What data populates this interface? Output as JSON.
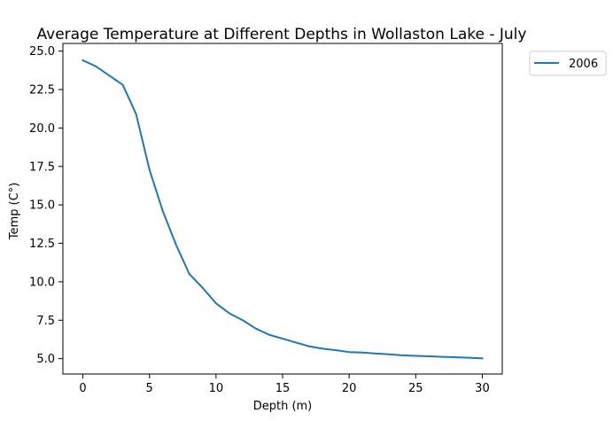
{
  "chart_data": {
    "type": "line",
    "title": "Average Temperature at Different Depths in Wollaston Lake - July",
    "xlabel": "Depth (m)",
    "ylabel": "Temp (C°)",
    "xlim": [
      -1.5,
      31.5
    ],
    "ylim": [
      4.0,
      25.5
    ],
    "xticks": [
      0,
      5,
      10,
      15,
      20,
      25,
      30
    ],
    "yticks": [
      5.0,
      7.5,
      10.0,
      12.5,
      15.0,
      17.5,
      20.0,
      22.5,
      25.0
    ],
    "grid": false,
    "legend_position": "outside-top-right",
    "series": [
      {
        "name": "2006",
        "color": "#1f77b4",
        "x": [
          0,
          1,
          2,
          3,
          4,
          5,
          6,
          7,
          8,
          9,
          10,
          11,
          12,
          13,
          14,
          15,
          16,
          17,
          18,
          19,
          20,
          21,
          22,
          23,
          24,
          25,
          26,
          27,
          28,
          29,
          30
        ],
        "y": [
          24.4,
          24.0,
          23.4,
          22.8,
          20.9,
          17.3,
          14.6,
          12.4,
          10.5,
          9.6,
          8.6,
          7.95,
          7.5,
          6.95,
          6.55,
          6.3,
          6.05,
          5.8,
          5.65,
          5.55,
          5.43,
          5.4,
          5.33,
          5.28,
          5.22,
          5.18,
          5.15,
          5.12,
          5.09,
          5.06,
          5.02
        ]
      }
    ]
  }
}
